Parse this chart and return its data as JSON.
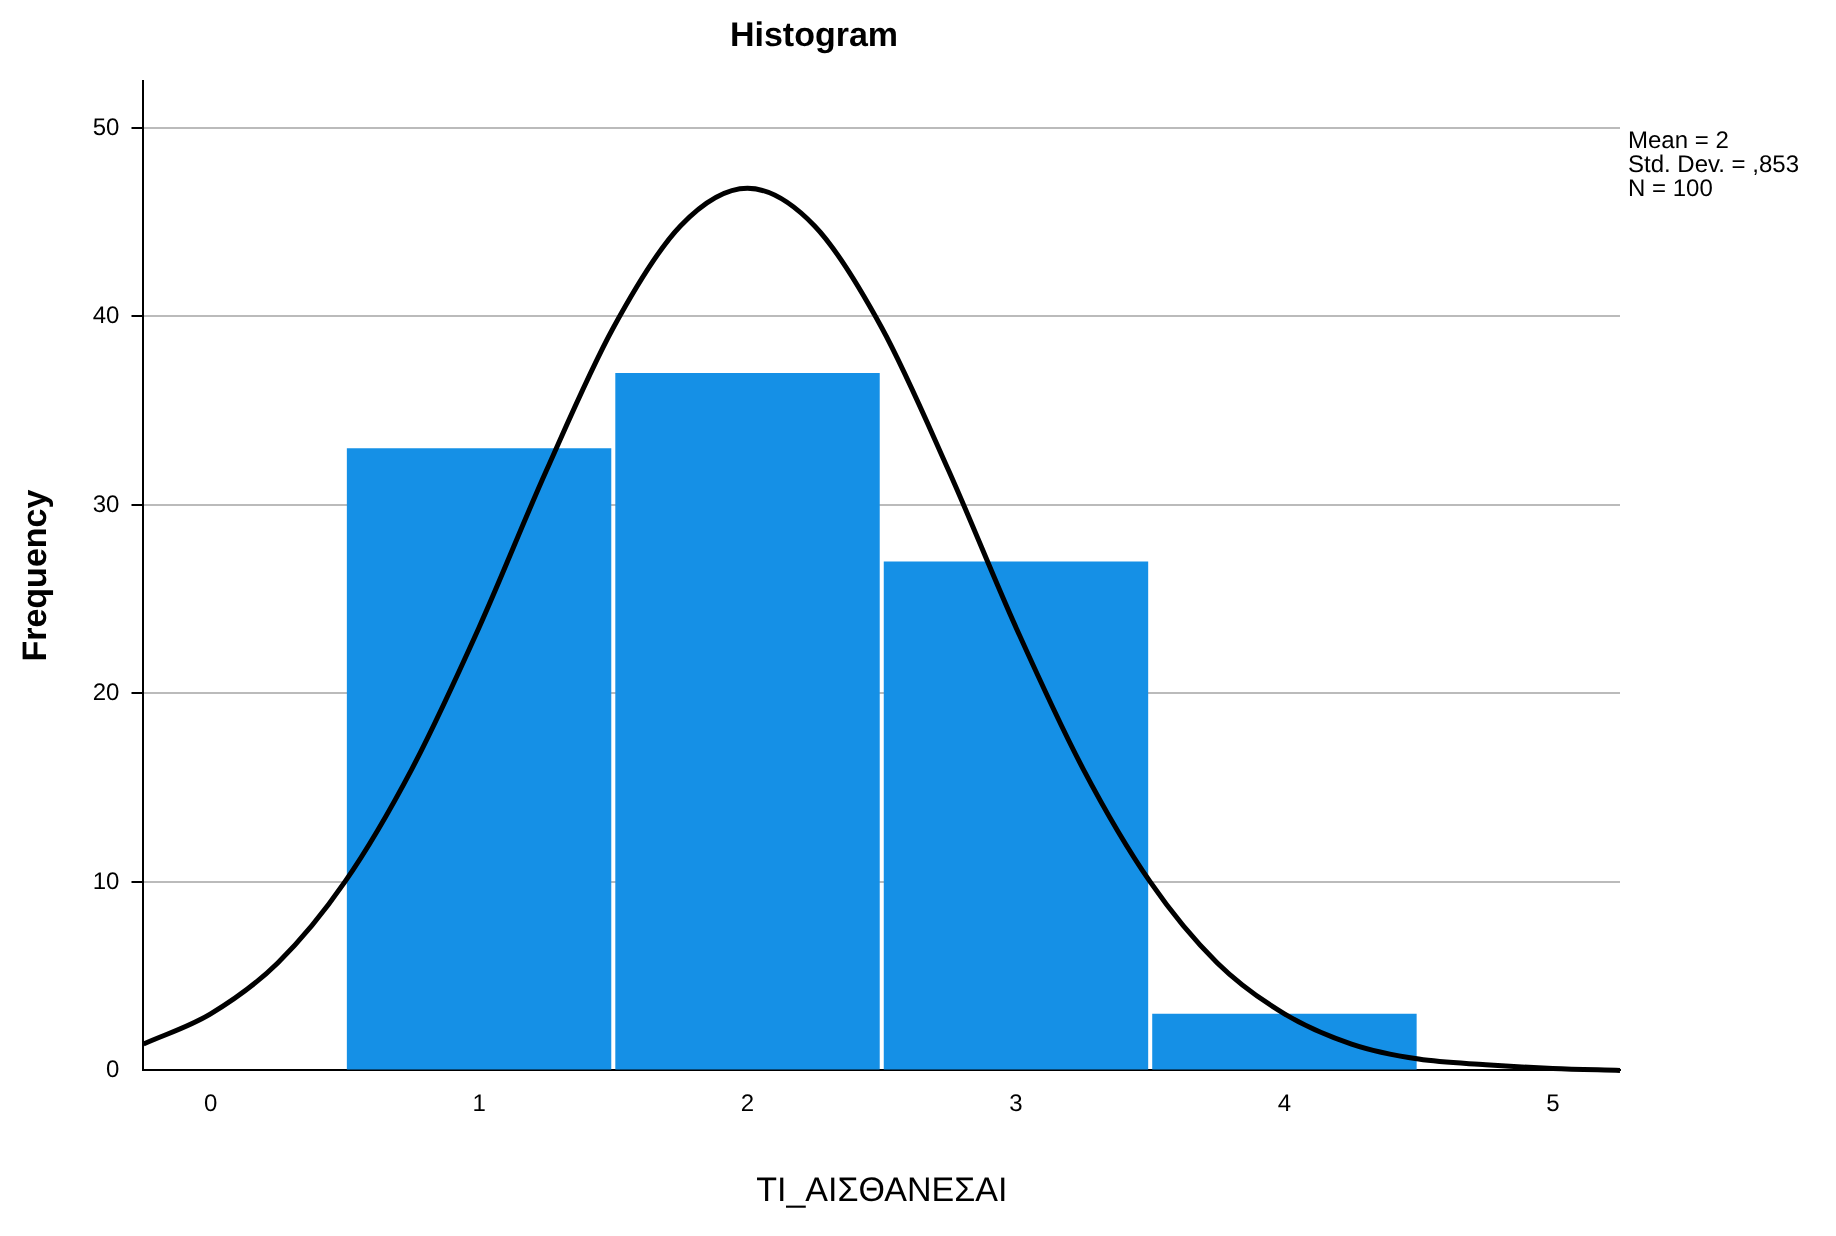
{
  "chart_data": {
    "type": "histogram",
    "title": "Histogram",
    "xlabel": "TI_ΑΙΣΘΑΝΕΣΑΙ",
    "ylabel": "Frequency",
    "bins": [
      0.5,
      1.5,
      2.5,
      3.5,
      4.5
    ],
    "values": [
      33,
      37,
      27,
      3
    ],
    "color": "#1590e6",
    "series": [
      {
        "type": "line",
        "color": "#000000",
        "x": [
          -0.25,
          0,
          0.25,
          0.5,
          0.75,
          1,
          1.25,
          1.5,
          1.75,
          2,
          2.25,
          2.5,
          2.75,
          3,
          3.25,
          3.5,
          3.75,
          4,
          4.25,
          4.5,
          4.75,
          5,
          5.25
        ],
        "values": [
          1.4,
          3.0,
          5.7,
          10.0,
          16.0,
          23.5,
          31.8,
          39.4,
          44.8,
          46.8,
          44.8,
          39.4,
          31.8,
          23.5,
          16.0,
          10.0,
          5.7,
          3.0,
          1.4,
          0.6,
          0.3,
          0.1,
          0.0
        ]
      }
    ],
    "xlim": [
      -0.25,
      5.25
    ],
    "xticks": [
      0,
      1,
      2,
      3,
      4,
      5
    ],
    "ylim": [
      0,
      52.5
    ],
    "yticks": [
      0,
      10,
      20,
      30,
      40,
      50
    ],
    "grid": "y",
    "legend": false,
    "annotations": [
      "Mean = 2",
      "Std. Dev. = ,853",
      "N = 100"
    ]
  }
}
